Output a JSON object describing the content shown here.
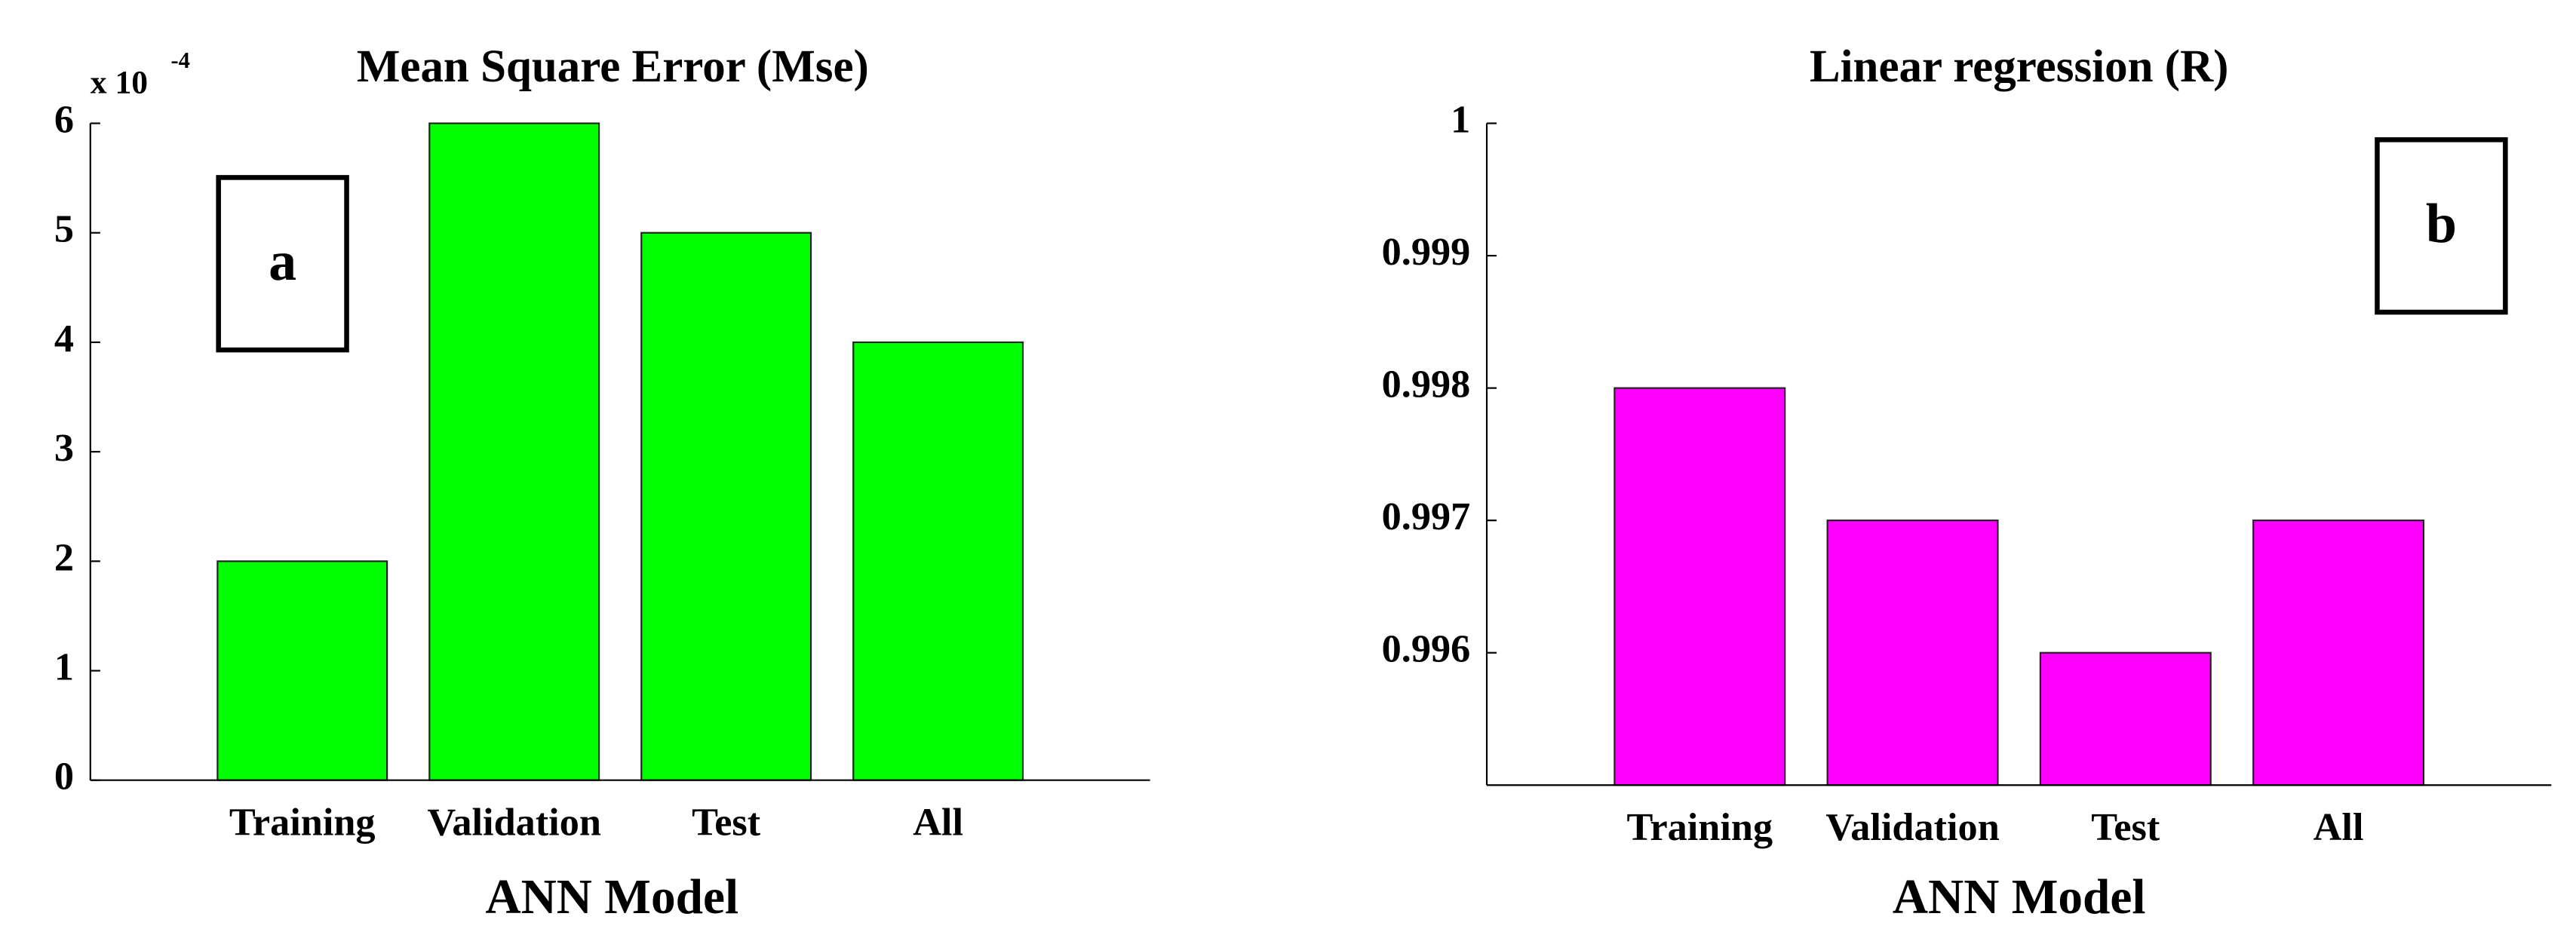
{
  "chart_data": [
    {
      "type": "bar",
      "title": "Mean Square Error (Mse)",
      "y_multiplier": "x 10",
      "y_multiplier_exponent": "-4",
      "annotation": "a",
      "xlabel": "ANN Model",
      "categories": [
        "Training",
        "Validation",
        "Test",
        "All"
      ],
      "values": [
        2,
        6,
        5,
        4
      ],
      "color": "#00ff00",
      "ylim": [
        0,
        6
      ],
      "yticks": [
        0,
        1,
        2,
        3,
        4,
        5,
        6
      ]
    },
    {
      "type": "bar",
      "title": "Linear regression (R)",
      "annotation": "b",
      "xlabel": "ANN Model",
      "categories": [
        "Training",
        "Validation",
        "Test",
        "All"
      ],
      "values": [
        0.998,
        0.997,
        0.996,
        0.997
      ],
      "color": "#ff00ff",
      "ylim": [
        0.995,
        1
      ],
      "yticks": [
        0.996,
        0.997,
        0.998,
        0.999,
        1
      ]
    }
  ]
}
